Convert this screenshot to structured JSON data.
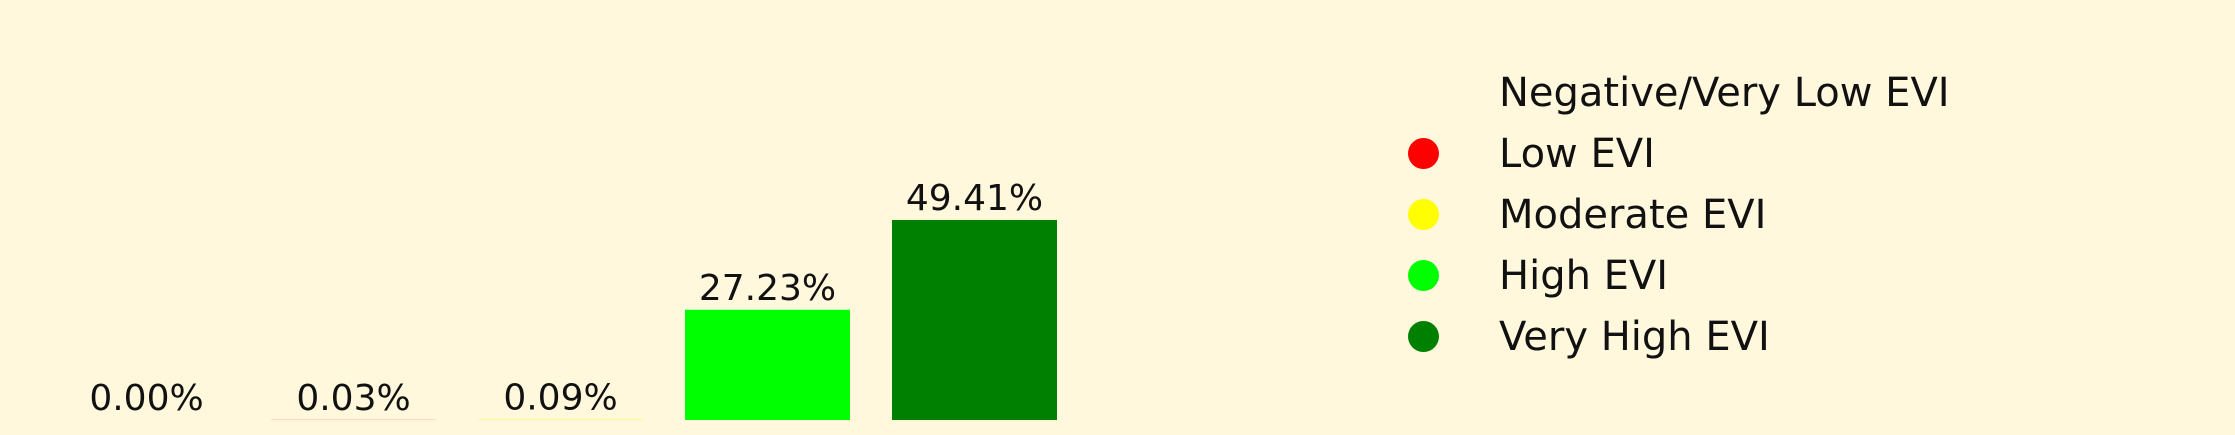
{
  "chart_data": {
    "type": "bar",
    "categories": [
      "Negative/Very Low EVI",
      "Low EVI",
      "Moderate EVI",
      "High EVI",
      "Very High EVI"
    ],
    "values": [
      0.0,
      0.03,
      0.09,
      27.23,
      49.41
    ],
    "labels": [
      "0.00%",
      "0.03%",
      "0.09%",
      "27.23%",
      "49.41%"
    ],
    "colors": [
      "#fff8dc",
      "#ff0000",
      "#ffff00",
      "#00ff00",
      "#008000"
    ],
    "ylim": [
      0,
      49.41
    ],
    "grid": false,
    "axes_visible": false,
    "legend_position": "right"
  }
}
